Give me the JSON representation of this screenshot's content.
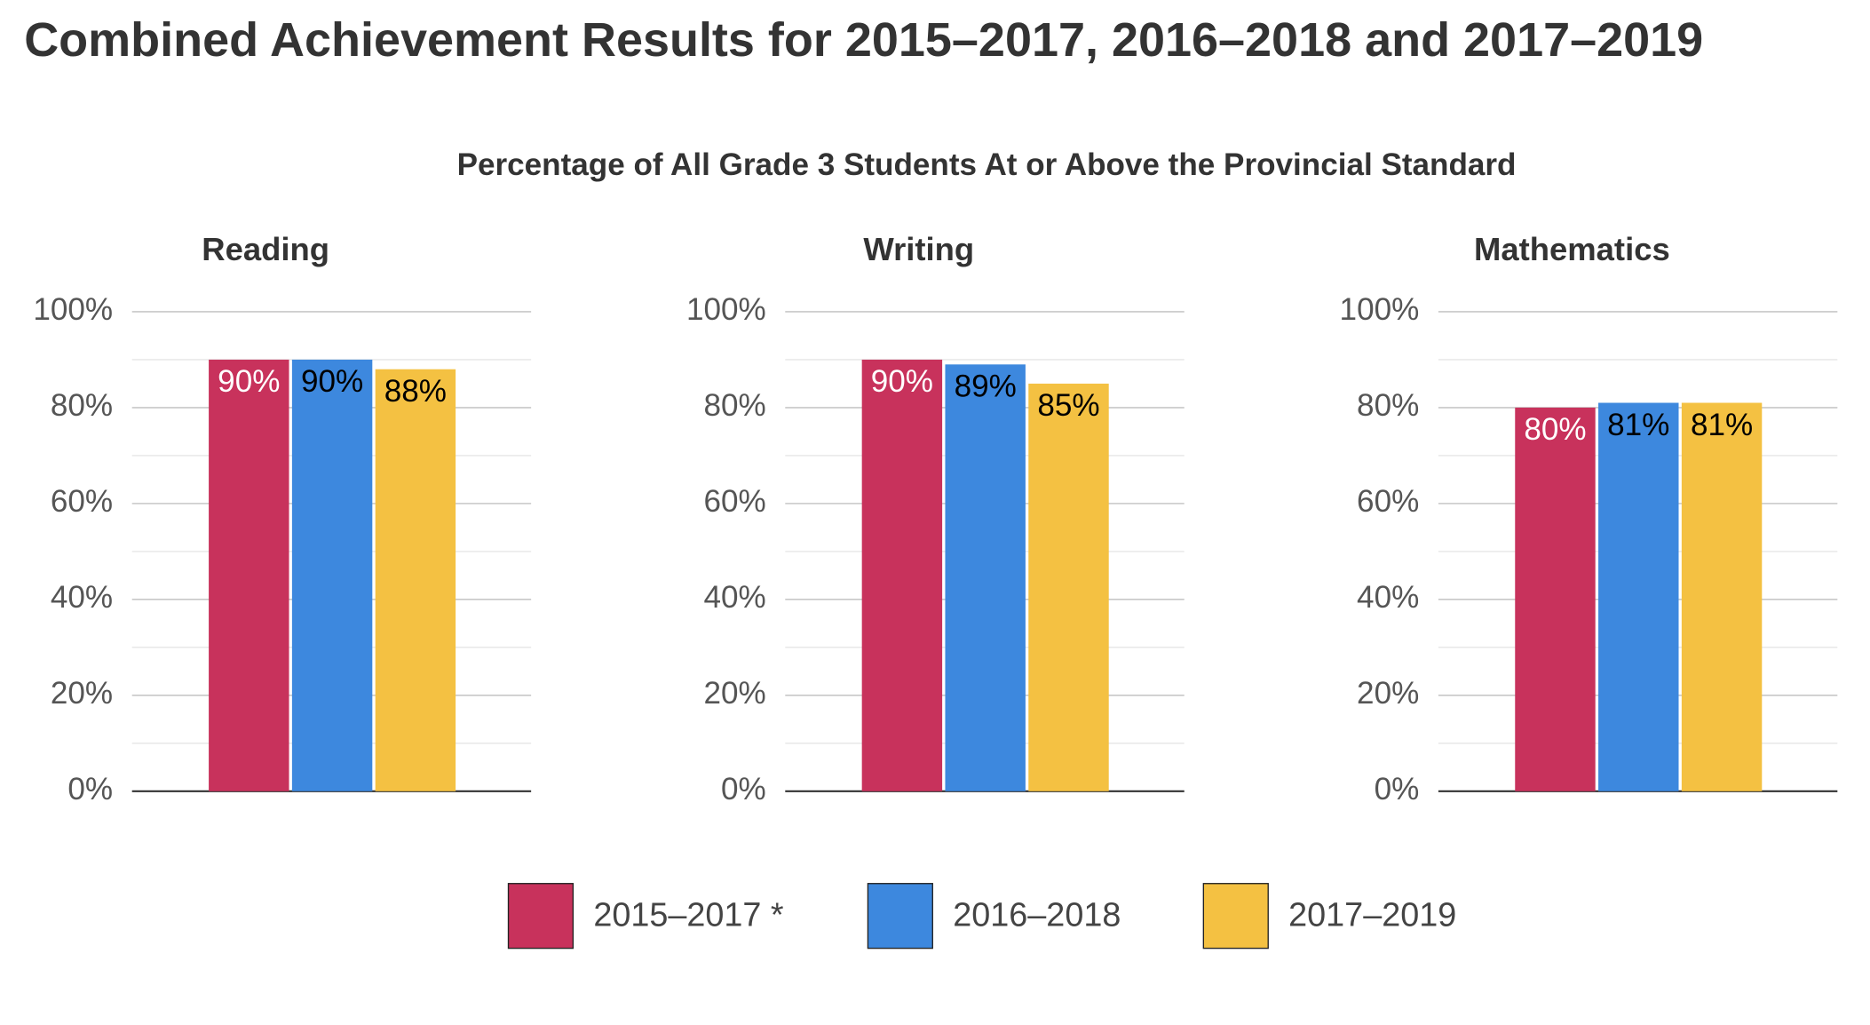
{
  "title": "Combined Achievement Results for 2015–2017, 2016–2018 and 2017–2019",
  "subtitle": "Percentage of All Grade 3 Students At or Above the Provincial Standard",
  "series": [
    {
      "name": "2015–2017 *",
      "color": "#c8325c",
      "label_color": "#ffffff"
    },
    {
      "name": "2016–2018",
      "color": "#3d88de",
      "label_color": "#000000"
    },
    {
      "name": "2017–2019",
      "color": "#f4c142",
      "label_color": "#000000"
    }
  ],
  "chart_data": [
    {
      "type": "bar",
      "title": "Reading",
      "values": [
        90,
        90,
        88
      ],
      "value_labels": [
        "90%",
        "90%",
        "88%"
      ],
      "ylim": [
        0,
        100
      ],
      "yticks": [
        {
          "value": 0,
          "label": "0%"
        },
        {
          "value": 20,
          "label": "20%"
        },
        {
          "value": 40,
          "label": "40%"
        },
        {
          "value": 60,
          "label": "60%"
        },
        {
          "value": 80,
          "label": "80%"
        },
        {
          "value": 100,
          "label": "100%"
        }
      ],
      "minor_yticks": [
        10,
        30,
        50,
        70,
        90
      ],
      "grid": true
    },
    {
      "type": "bar",
      "title": "Writing",
      "values": [
        90,
        89,
        85
      ],
      "value_labels": [
        "90%",
        "89%",
        "85%"
      ],
      "ylim": [
        0,
        100
      ],
      "yticks": [
        {
          "value": 0,
          "label": "0%"
        },
        {
          "value": 20,
          "label": "20%"
        },
        {
          "value": 40,
          "label": "40%"
        },
        {
          "value": 60,
          "label": "60%"
        },
        {
          "value": 80,
          "label": "80%"
        },
        {
          "value": 100,
          "label": "100%"
        }
      ],
      "minor_yticks": [
        10,
        30,
        50,
        70,
        90
      ],
      "grid": true
    },
    {
      "type": "bar",
      "title": "Mathematics",
      "values": [
        80,
        81,
        81
      ],
      "value_labels": [
        "80%",
        "81%",
        "81%"
      ],
      "ylim": [
        0,
        100
      ],
      "yticks": [
        {
          "value": 0,
          "label": "0%"
        },
        {
          "value": 20,
          "label": "20%"
        },
        {
          "value": 40,
          "label": "40%"
        },
        {
          "value": 60,
          "label": "60%"
        },
        {
          "value": 80,
          "label": "80%"
        },
        {
          "value": 100,
          "label": "100%"
        }
      ],
      "minor_yticks": [
        10,
        30,
        50,
        70,
        90
      ],
      "grid": true
    }
  ]
}
